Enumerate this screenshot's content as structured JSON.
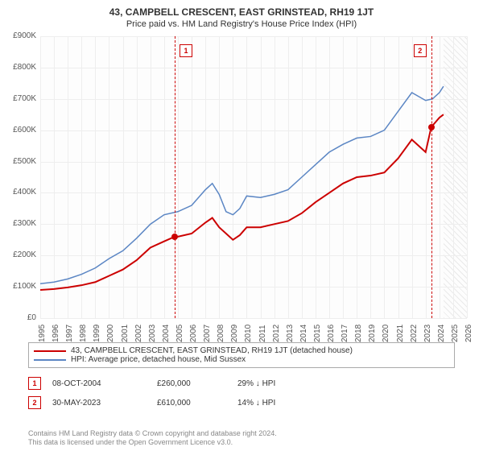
{
  "title": "43, CAMPBELL CRESCENT, EAST GRINSTEAD, RH19 1JT",
  "subtitle": "Price paid vs. HM Land Registry's House Price Index (HPI)",
  "chart": {
    "type": "line",
    "background_color": "#fdfdfd",
    "grid_color": "#eeeeee",
    "ylim": [
      0,
      900000
    ],
    "ytick_step": 100000,
    "yticks": [
      "£0",
      "£100K",
      "£200K",
      "£300K",
      "£400K",
      "£500K",
      "£600K",
      "£700K",
      "£800K",
      "£900K"
    ],
    "xlim": [
      1995,
      2026
    ],
    "xticks": [
      1995,
      1996,
      1997,
      1998,
      1999,
      2000,
      2001,
      2002,
      2003,
      2004,
      2005,
      2006,
      2007,
      2008,
      2009,
      2010,
      2011,
      2012,
      2013,
      2014,
      2015,
      2016,
      2017,
      2018,
      2019,
      2020,
      2021,
      2022,
      2023,
      2024,
      2025,
      2026
    ],
    "hatch_from": 2024.3,
    "series": [
      {
        "name": "price_paid",
        "color": "#cc0000",
        "width": 2,
        "points": [
          [
            1995,
            90000
          ],
          [
            1996,
            93000
          ],
          [
            1997,
            98000
          ],
          [
            1998,
            105000
          ],
          [
            1999,
            115000
          ],
          [
            2000,
            135000
          ],
          [
            2001,
            155000
          ],
          [
            2002,
            185000
          ],
          [
            2003,
            225000
          ],
          [
            2004,
            245000
          ],
          [
            2004.77,
            260000
          ],
          [
            2005,
            260000
          ],
          [
            2006,
            270000
          ],
          [
            2007,
            305000
          ],
          [
            2007.5,
            320000
          ],
          [
            2008,
            290000
          ],
          [
            2009,
            250000
          ],
          [
            2009.5,
            265000
          ],
          [
            2010,
            290000
          ],
          [
            2011,
            290000
          ],
          [
            2012,
            300000
          ],
          [
            2013,
            310000
          ],
          [
            2014,
            335000
          ],
          [
            2015,
            370000
          ],
          [
            2016,
            400000
          ],
          [
            2017,
            430000
          ],
          [
            2018,
            450000
          ],
          [
            2019,
            455000
          ],
          [
            2020,
            465000
          ],
          [
            2021,
            510000
          ],
          [
            2022,
            570000
          ],
          [
            2023,
            530000
          ],
          [
            2023.41,
            610000
          ],
          [
            2024,
            640000
          ],
          [
            2024.3,
            650000
          ]
        ]
      },
      {
        "name": "hpi",
        "color": "#5b86c4",
        "width": 1.5,
        "points": [
          [
            1995,
            110000
          ],
          [
            1996,
            115000
          ],
          [
            1997,
            125000
          ],
          [
            1998,
            140000
          ],
          [
            1999,
            160000
          ],
          [
            2000,
            190000
          ],
          [
            2001,
            215000
          ],
          [
            2002,
            255000
          ],
          [
            2003,
            300000
          ],
          [
            2004,
            330000
          ],
          [
            2005,
            340000
          ],
          [
            2006,
            360000
          ],
          [
            2007,
            410000
          ],
          [
            2007.5,
            430000
          ],
          [
            2008,
            395000
          ],
          [
            2008.5,
            340000
          ],
          [
            2009,
            330000
          ],
          [
            2009.5,
            350000
          ],
          [
            2010,
            390000
          ],
          [
            2011,
            385000
          ],
          [
            2012,
            395000
          ],
          [
            2013,
            410000
          ],
          [
            2014,
            450000
          ],
          [
            2015,
            490000
          ],
          [
            2016,
            530000
          ],
          [
            2017,
            555000
          ],
          [
            2018,
            575000
          ],
          [
            2019,
            580000
          ],
          [
            2020,
            600000
          ],
          [
            2021,
            660000
          ],
          [
            2022,
            720000
          ],
          [
            2023,
            695000
          ],
          [
            2023.5,
            700000
          ],
          [
            2024,
            720000
          ],
          [
            2024.3,
            740000
          ]
        ]
      }
    ],
    "sale_markers": [
      {
        "n": "1",
        "x": 2004.77,
        "y": 260000,
        "color": "#cc0000"
      },
      {
        "n": "2",
        "x": 2023.41,
        "y": 610000,
        "color": "#cc0000"
      }
    ]
  },
  "legend": {
    "items": [
      {
        "color": "#cc0000",
        "label": "43, CAMPBELL CRESCENT, EAST GRINSTEAD, RH19 1JT (detached house)"
      },
      {
        "color": "#5b86c4",
        "label": "HPI: Average price, detached house, Mid Sussex"
      }
    ]
  },
  "sales": [
    {
      "n": "1",
      "color": "#cc0000",
      "date": "08-OCT-2004",
      "price": "£260,000",
      "diff": "29% ↓ HPI"
    },
    {
      "n": "2",
      "color": "#cc0000",
      "date": "30-MAY-2023",
      "price": "£610,000",
      "diff": "14% ↓ HPI"
    }
  ],
  "footer_line1": "Contains HM Land Registry data © Crown copyright and database right 2024.",
  "footer_line2": "This data is licensed under the Open Government Licence v3.0."
}
